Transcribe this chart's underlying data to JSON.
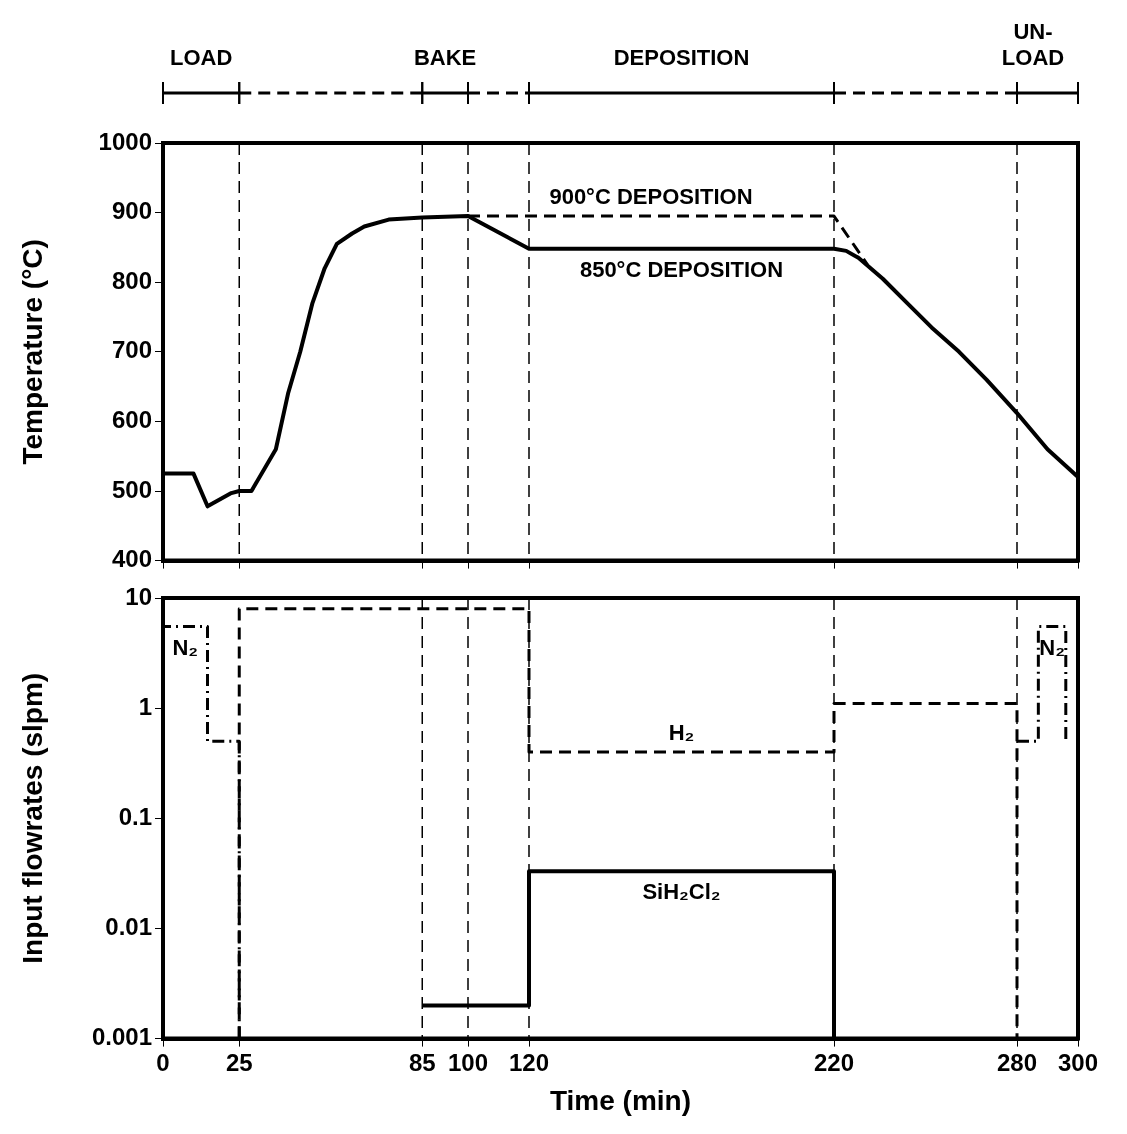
{
  "chart_data": [
    {
      "type": "line",
      "ylabel": "Temperature (°C)",
      "xlim": [
        0,
        300
      ],
      "xticks": [
        0,
        25,
        85,
        100,
        120,
        220,
        280,
        300
      ],
      "ylim": [
        400,
        1000
      ],
      "yticks": [
        400,
        500,
        600,
        700,
        800,
        900,
        1000
      ],
      "tick_labels": "y",
      "grid": false,
      "marker": "none",
      "series": [
        {
          "name": "850°C DEPOSITION",
          "color": "#000000",
          "line_style": "solid",
          "x": [
            0,
            10,
            14.6,
            22.4,
            25,
            29,
            37,
            41,
            45,
            49,
            53,
            57,
            62,
            66,
            74,
            85,
            100,
            120,
            220,
            224,
            228,
            236,
            244,
            252,
            261,
            270,
            280,
            290,
            300
          ],
          "values": [
            525,
            525,
            478,
            497,
            500,
            500,
            560,
            640,
            700,
            770,
            820,
            855,
            870,
            880,
            890,
            893,
            895,
            848,
            848,
            845,
            835,
            805,
            770,
            735,
            700,
            660,
            612,
            560,
            520
          ]
        },
        {
          "name": "900°C DEPOSITION",
          "color": "#000000",
          "line_style": "dashed",
          "x": [
            100,
            220,
            231
          ],
          "values": [
            895,
            895,
            825
          ]
        }
      ],
      "annotations": [
        "LOAD",
        "BAKE",
        "DEPOSITION",
        "UN-LOAD"
      ],
      "ref_lines": [
        {
          "axis": "x",
          "value": 25,
          "line_style": "dashed"
        },
        {
          "axis": "x",
          "value": 85,
          "line_style": "dashed"
        },
        {
          "axis": "x",
          "value": 100,
          "line_style": "dashed"
        },
        {
          "axis": "x",
          "value": 120,
          "line_style": "dashed"
        },
        {
          "axis": "x",
          "value": 220,
          "line_style": "dashed"
        },
        {
          "axis": "x",
          "value": 280,
          "line_style": "dashed"
        }
      ]
    },
    {
      "type": "line",
      "xlabel": "Time (min)",
      "ylabel": "Input flowrates (slpm)",
      "log": "y",
      "xlim": [
        0,
        300
      ],
      "xticks": [
        0,
        25,
        85,
        100,
        120,
        220,
        280,
        300
      ],
      "ylim": [
        0.001,
        10
      ],
      "yticks": [
        0.001,
        0.01,
        0.1,
        1,
        10
      ],
      "grid": false,
      "marker": "none",
      "series": [
        {
          "name": "N₂",
          "color": "#000000",
          "line_style": "dashdot",
          "x": [
            0,
            0,
            14.6,
            14.6,
            25,
            25,
            150,
            280,
            287,
            287,
            296,
            296
          ],
          "values": [
            0.001,
            5.5,
            5.5,
            0.5,
            0.5,
            0.001,
            null,
            0.5,
            0.5,
            5.5,
            5.5,
            0.5
          ]
        },
        {
          "name": "H₂",
          "color": "#000000",
          "line_style": "dashed",
          "x": [
            25,
            25,
            120,
            120,
            220,
            220,
            280,
            280
          ],
          "values": [
            0.001,
            8,
            8,
            0.4,
            0.4,
            1.1,
            1.1,
            0.001
          ]
        },
        {
          "name": "SiH₂Cl₂",
          "color": "#000000",
          "line_style": "solid",
          "x": [
            85,
            120,
            120,
            220,
            220
          ],
          "values": [
            0.002,
            0.002,
            0.033,
            0.033,
            0.001
          ]
        }
      ],
      "ref_lines": [
        {
          "axis": "x",
          "value": 85,
          "line_style": "dashed"
        },
        {
          "axis": "x",
          "value": 100,
          "line_style": "dashed"
        },
        {
          "axis": "x",
          "value": 120,
          "line_style": "dashed"
        },
        {
          "axis": "x",
          "value": 220,
          "line_style": "dashed"
        },
        {
          "axis": "x",
          "value": 280,
          "line_style": "dashed"
        }
      ]
    }
  ]
}
